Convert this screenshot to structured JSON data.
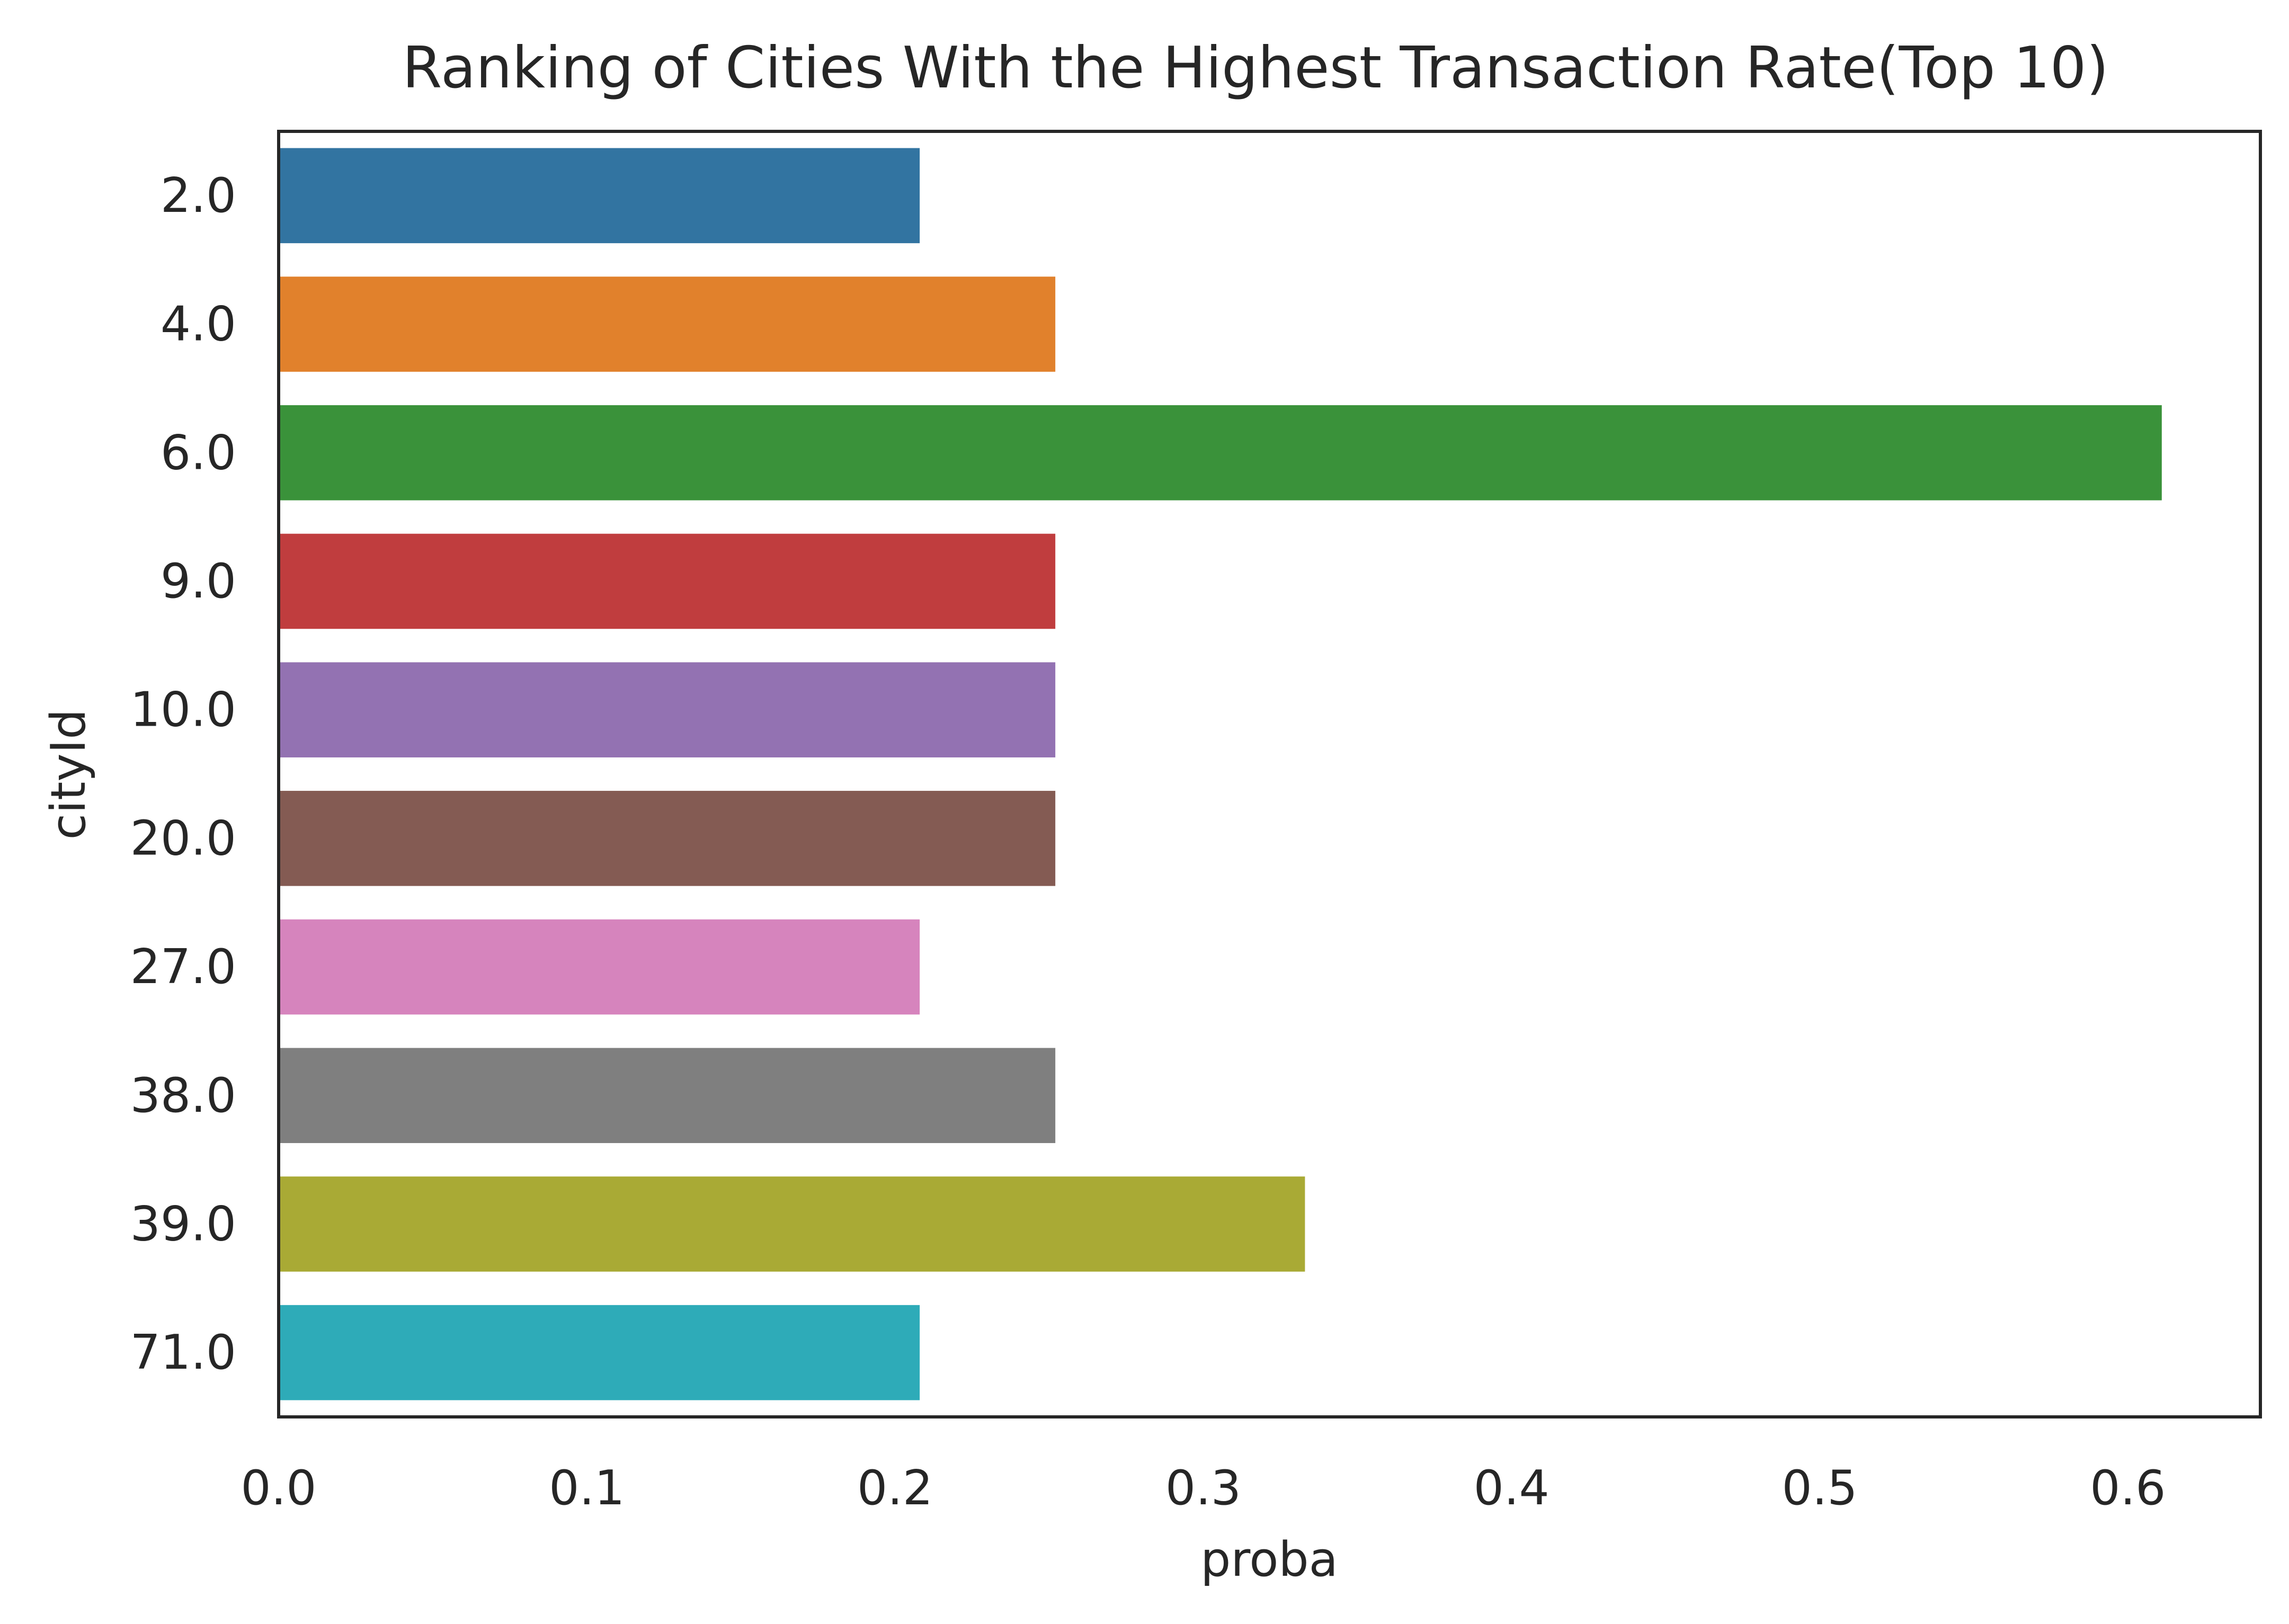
{
  "chart_data": {
    "type": "bar",
    "orientation": "horizontal",
    "title": "Ranking of Cities With the Highest Transaction Rate(Top 10)",
    "xlabel": "proba",
    "ylabel": "cityId",
    "categories": [
      "2.0",
      "4.0",
      "6.0",
      "9.0",
      "10.0",
      "20.0",
      "27.0",
      "38.0",
      "39.0",
      "71.0"
    ],
    "values": [
      0.208,
      0.252,
      0.611,
      0.252,
      0.252,
      0.252,
      0.208,
      0.252,
      0.333,
      0.208
    ],
    "colors": [
      "#3274a1",
      "#e1812c",
      "#3a923a",
      "#c03d3e",
      "#9372b2",
      "#845b53",
      "#d684bd",
      "#7f7f7f",
      "#a9aa35",
      "#2eabb8"
    ],
    "xlim": [
      0,
      0.643
    ],
    "xticks": [
      "0.0",
      "0.1",
      "0.2",
      "0.3",
      "0.4",
      "0.5",
      "0.6"
    ],
    "grid": false,
    "legend": "none"
  }
}
